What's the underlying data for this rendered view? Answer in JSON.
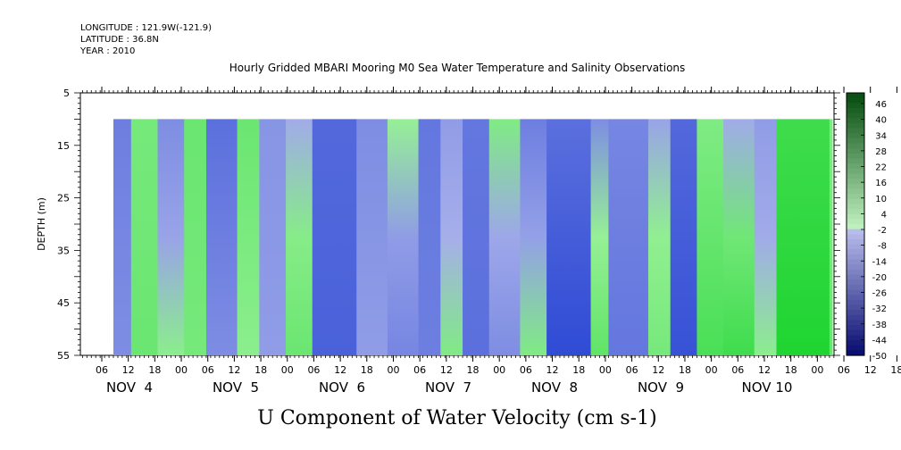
{
  "header": {
    "longitude": "LONGITUDE : 121.9W(-121.9)",
    "latitude": "LATITUDE : 36.8N",
    "year": "YEAR : 2010"
  },
  "chart_data": {
    "type": "heatmap",
    "title": "Hourly Gridded MBARI Mooring M0 Sea Water Temperature and Salinity Observations",
    "xlabel": "U Component of Water Velocity (cm s-1)",
    "ylabel": "DEPTH (m)",
    "ylim": [
      5,
      55
    ],
    "y_inverted": true,
    "y_ticks": [
      5,
      15,
      25,
      35,
      45,
      55
    ],
    "x_hour_ticks": [
      "06",
      "12",
      "18",
      "00",
      "06",
      "12",
      "18",
      "00",
      "06",
      "12",
      "18",
      "00",
      "06",
      "12",
      "18",
      "00",
      "06",
      "12",
      "18",
      "00",
      "06",
      "12",
      "18",
      "00",
      "06",
      "12",
      "18",
      "00",
      "06",
      "12",
      "18",
      "00"
    ],
    "x_day_labels": [
      "NOV  4",
      "NOV  5",
      "NOV  6",
      "NOV  7",
      "NOV  8",
      "NOV  9",
      "NOV 10"
    ],
    "data_depth_range": [
      10,
      55
    ],
    "colorbar": {
      "levels": [
        "46",
        "40",
        "34",
        "28",
        "22",
        "16",
        "10",
        "4",
        "-2",
        "-8",
        "-14",
        "-20",
        "-26",
        "-32",
        "-38",
        "-44",
        "-50"
      ],
      "range": [
        -50,
        52
      ]
    },
    "columns": [
      {
        "start_hour": 0,
        "end_hour": 4,
        "top": -14,
        "bottom": -10
      },
      {
        "start_hour": 4,
        "end_hour": 10,
        "top": 6,
        "bottom": 8
      },
      {
        "start_hour": 10,
        "end_hour": 16,
        "top": -10,
        "bottom": 2
      },
      {
        "start_hour": 16,
        "end_hour": 21,
        "top": 8,
        "bottom": 6
      },
      {
        "start_hour": 21,
        "end_hour": 28,
        "top": -18,
        "bottom": -10
      },
      {
        "start_hour": 28,
        "end_hour": 33,
        "top": 8,
        "bottom": 2
      },
      {
        "start_hour": 33,
        "end_hour": 39,
        "top": -8,
        "bottom": -6
      },
      {
        "start_hour": 39,
        "end_hour": 45,
        "top": -2,
        "bottom": 8
      },
      {
        "start_hour": 45,
        "end_hour": 55,
        "top": -20,
        "bottom": -22
      },
      {
        "start_hour": 55,
        "end_hour": 62,
        "top": -10,
        "bottom": -6
      },
      {
        "start_hour": 62,
        "end_hour": 69,
        "top": 0,
        "bottom": -12
      },
      {
        "start_hour": 69,
        "end_hour": 74,
        "top": -16,
        "bottom": -14
      },
      {
        "start_hour": 74,
        "end_hour": 79,
        "top": -6,
        "bottom": 4
      },
      {
        "start_hour": 79,
        "end_hour": 85,
        "top": -16,
        "bottom": -18
      },
      {
        "start_hour": 85,
        "end_hour": 92,
        "top": 4,
        "bottom": -10
      },
      {
        "start_hour": 92,
        "end_hour": 98,
        "top": -14,
        "bottom": 4
      },
      {
        "start_hour": 98,
        "end_hour": 108,
        "top": -18,
        "bottom": -28
      },
      {
        "start_hour": 108,
        "end_hour": 112,
        "top": -10,
        "bottom": 10
      },
      {
        "start_hour": 112,
        "end_hour": 121,
        "top": -12,
        "bottom": -16
      },
      {
        "start_hour": 121,
        "end_hour": 126,
        "top": -4,
        "bottom": 6
      },
      {
        "start_hour": 126,
        "end_hour": 132,
        "top": -20,
        "bottom": -26
      },
      {
        "start_hour": 132,
        "end_hour": 138,
        "top": 4,
        "bottom": 14
      },
      {
        "start_hour": 138,
        "end_hour": 145,
        "top": -2,
        "bottom": 16
      },
      {
        "start_hour": 145,
        "end_hour": 150,
        "top": -6,
        "bottom": 2
      },
      {
        "start_hour": 150,
        "end_hour": 162,
        "top": 16,
        "bottom": 22
      },
      {
        "start_hour": 162,
        "end_hour": 170,
        "top": 4,
        "bottom": 8
      }
    ]
  }
}
